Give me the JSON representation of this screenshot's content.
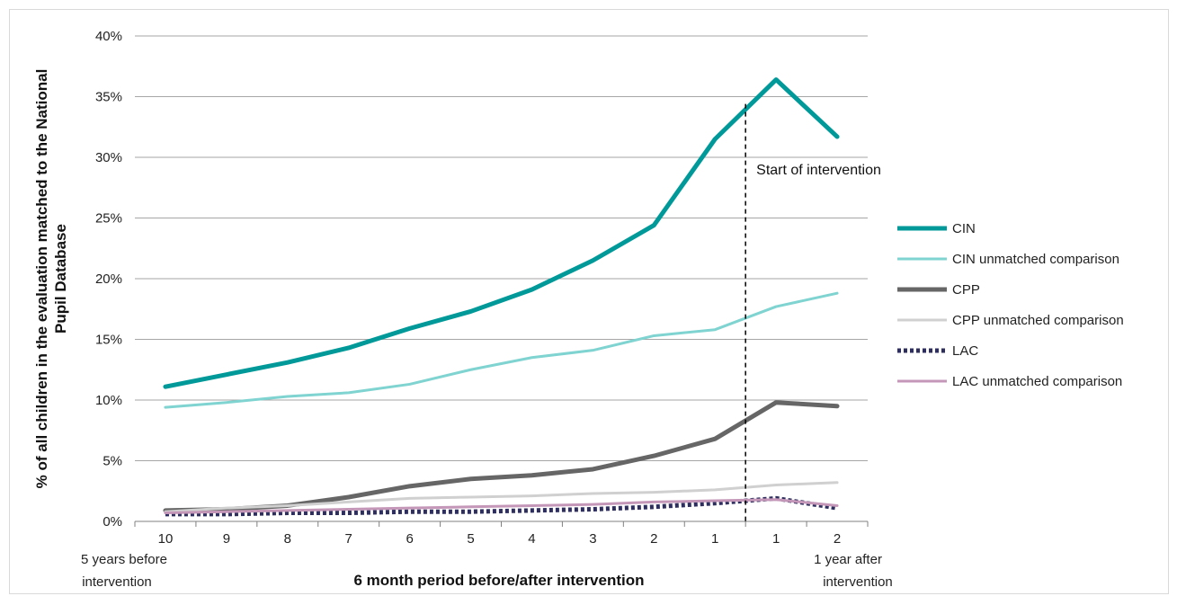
{
  "chart_data": {
    "type": "line",
    "categories": [
      "10",
      "9",
      "8",
      "7",
      "6",
      "5",
      "4",
      "3",
      "2",
      "1",
      "1",
      "2"
    ],
    "x_end_labels": {
      "left": [
        "5 years before",
        "intervention"
      ],
      "right": [
        "1 year after",
        "intervention"
      ]
    },
    "xlabel": "6 month period before/after intervention",
    "ylabel": [
      "% of all children in the evaluation matched to the National",
      "Pupil Database"
    ],
    "ylim": [
      0,
      40
    ],
    "yticks": [
      0,
      5,
      10,
      15,
      20,
      25,
      30,
      35,
      40
    ],
    "ytick_labels": [
      "0%",
      "5%",
      "10%",
      "15%",
      "20%",
      "25%",
      "30%",
      "35%",
      "40%"
    ],
    "grid": true,
    "legend_position": "right",
    "annotation": {
      "text": "Start of intervention",
      "between_categories": [
        9,
        10
      ]
    },
    "series": [
      {
        "name": "CIN",
        "color": "#009999",
        "style": "solid-thick",
        "values": [
          11.1,
          12.1,
          13.1,
          14.3,
          15.9,
          17.3,
          19.1,
          21.5,
          24.4,
          31.5,
          36.4,
          31.7
        ]
      },
      {
        "name": "CIN unmatched comparison",
        "color": "#7fd3d0",
        "style": "solid",
        "values": [
          9.4,
          9.8,
          10.3,
          10.6,
          11.3,
          12.5,
          13.5,
          14.1,
          15.3,
          15.8,
          17.7,
          18.8
        ]
      },
      {
        "name": "CPP",
        "color": "#666666",
        "style": "solid-thick",
        "values": [
          0.9,
          1.0,
          1.3,
          2.0,
          2.9,
          3.5,
          3.8,
          4.3,
          5.4,
          6.8,
          9.8,
          9.5
        ]
      },
      {
        "name": "CPP unmatched comparison",
        "color": "#d0d0d0",
        "style": "solid",
        "values": [
          0.8,
          1.1,
          1.3,
          1.6,
          1.9,
          2.0,
          2.1,
          2.3,
          2.4,
          2.6,
          3.0,
          3.2
        ]
      },
      {
        "name": "LAC",
        "color": "#2e2e5e",
        "style": "dotted-thick",
        "values": [
          0.6,
          0.6,
          0.7,
          0.7,
          0.8,
          0.8,
          0.9,
          1.0,
          1.2,
          1.5,
          1.9,
          1.1
        ]
      },
      {
        "name": "LAC unmatched comparison",
        "color": "#c497b8",
        "style": "solid",
        "values": [
          0.7,
          0.8,
          0.9,
          1.0,
          1.1,
          1.2,
          1.3,
          1.4,
          1.6,
          1.7,
          1.8,
          1.3
        ]
      }
    ]
  }
}
